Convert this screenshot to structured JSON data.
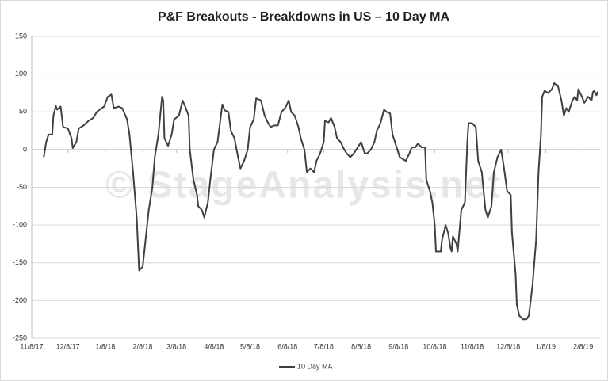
{
  "chart_data": {
    "type": "line",
    "title": "P&F Breakouts - Breakdowns in US – 10 Day MA",
    "watermark": "© StageAnalysis.net",
    "x": [
      "2017-11-18",
      "2017-11-20",
      "2017-11-22",
      "2017-11-25",
      "2017-11-26",
      "2017-11-28",
      "2017-11-29",
      "2017-12-02",
      "2017-12-04",
      "2017-12-08",
      "2017-12-11",
      "2017-12-12",
      "2017-12-15",
      "2017-12-17",
      "2017-12-21",
      "2017-12-25",
      "2017-12-29",
      "2018-01-01",
      "2018-01-05",
      "2018-01-07",
      "2018-01-10",
      "2018-01-13",
      "2018-01-15",
      "2018-01-19",
      "2018-01-22",
      "2018-01-26",
      "2018-01-28",
      "2018-01-31",
      "2018-02-03",
      "2018-02-05",
      "2018-02-08",
      "2018-02-11",
      "2018-02-13",
      "2018-02-16",
      "2018-02-18",
      "2018-02-21",
      "2018-02-24",
      "2018-02-25",
      "2018-02-26",
      "2018-03-01",
      "2018-03-04",
      "2018-03-06",
      "2018-03-10",
      "2018-03-13",
      "2018-03-15",
      "2018-03-18",
      "2018-03-19",
      "2018-03-22",
      "2018-03-25",
      "2018-03-26",
      "2018-03-29",
      "2018-03-31",
      "2018-04-03",
      "2018-04-05",
      "2018-04-08",
      "2018-04-11",
      "2018-04-15",
      "2018-04-17",
      "2018-04-20",
      "2018-04-22",
      "2018-04-25",
      "2018-04-28",
      "2018-04-30",
      "2018-05-03",
      "2018-05-06",
      "2018-05-08",
      "2018-05-11",
      "2018-05-13",
      "2018-05-17",
      "2018-05-20",
      "2018-05-23",
      "2018-05-25",
      "2018-05-28",
      "2018-05-31",
      "2018-06-03",
      "2018-06-06",
      "2018-06-09",
      "2018-06-11",
      "2018-06-14",
      "2018-06-17",
      "2018-06-19",
      "2018-06-22",
      "2018-06-24",
      "2018-06-27",
      "2018-06-30",
      "2018-07-02",
      "2018-07-05",
      "2018-07-08",
      "2018-07-09",
      "2018-07-12",
      "2018-07-14",
      "2018-07-17",
      "2018-07-19",
      "2018-07-22",
      "2018-07-25",
      "2018-07-27",
      "2018-07-30",
      "2018-08-02",
      "2018-08-04",
      "2018-08-08",
      "2018-08-11",
      "2018-08-13",
      "2018-08-16",
      "2018-08-19",
      "2018-08-21",
      "2018-08-24",
      "2018-08-27",
      "2018-08-29",
      "2018-09-01",
      "2018-09-03",
      "2018-09-06",
      "2018-09-09",
      "2018-09-11",
      "2018-09-14",
      "2018-09-17",
      "2018-09-19",
      "2018-09-22",
      "2018-09-24",
      "2018-09-27",
      "2018-09-30",
      "2018-10-01",
      "2018-10-04",
      "2018-10-06",
      "2018-10-08",
      "2018-10-09",
      "2018-10-13",
      "2018-10-14",
      "2018-10-17",
      "2018-10-19",
      "2018-10-21",
      "2018-10-22",
      "2018-10-23",
      "2018-10-26",
      "2018-10-27",
      "2018-10-30",
      "2018-11-02",
      "2018-11-04",
      "2018-11-05",
      "2018-11-08",
      "2018-11-11",
      "2018-11-13",
      "2018-11-16",
      "2018-11-19",
      "2018-11-21",
      "2018-11-24",
      "2018-11-26",
      "2018-11-29",
      "2018-12-02",
      "2018-12-04",
      "2018-12-07",
      "2018-12-10",
      "2018-12-11",
      "2018-12-14",
      "2018-12-15",
      "2018-12-17",
      "2018-12-20",
      "2018-12-23",
      "2018-12-25",
      "2018-12-28",
      "2018-12-31",
      "2019-01-02",
      "2019-01-04",
      "2019-01-05",
      "2019-01-07",
      "2019-01-10",
      "2019-01-13",
      "2019-01-15",
      "2019-01-18",
      "2019-01-21",
      "2019-01-23",
      "2019-01-25",
      "2019-01-27",
      "2019-01-30",
      "2019-02-01",
      "2019-02-03",
      "2019-02-04",
      "2019-02-07",
      "2019-02-09",
      "2019-02-12",
      "2019-02-15",
      "2019-02-16",
      "2019-02-17",
      "2019-02-19",
      "2019-02-20"
    ],
    "series": [
      {
        "name": "10 Day MA",
        "color": "#404040",
        "values": [
          -10,
          10,
          20,
          20,
          45,
          58,
          53,
          57,
          30,
          28,
          15,
          2,
          10,
          28,
          32,
          38,
          42,
          50,
          55,
          57,
          70,
          73,
          55,
          57,
          55,
          40,
          20,
          -30,
          -90,
          -160,
          -155,
          -110,
          -80,
          -50,
          -10,
          20,
          70,
          65,
          15,
          5,
          20,
          40,
          45,
          65,
          58,
          45,
          0,
          -40,
          -60,
          -75,
          -80,
          -90,
          -70,
          -40,
          0,
          10,
          60,
          52,
          50,
          25,
          15,
          -10,
          -25,
          -15,
          0,
          30,
          40,
          68,
          65,
          45,
          35,
          30,
          32,
          32,
          50,
          55,
          65,
          50,
          45,
          30,
          15,
          0,
          -30,
          -25,
          -30,
          -15,
          -5,
          10,
          38,
          36,
          42,
          30,
          15,
          10,
          0,
          -5,
          -10,
          -5,
          0,
          10,
          -5,
          -5,
          0,
          10,
          25,
          35,
          53,
          50,
          48,
          20,
          5,
          -10,
          -12,
          -15,
          -5,
          3,
          3,
          8,
          3,
          3,
          -40,
          -55,
          -70,
          -100,
          -135,
          -135,
          -120,
          -100,
          -110,
          -130,
          -135,
          -115,
          -125,
          -135,
          -80,
          -70,
          10,
          35,
          35,
          30,
          -15,
          -30,
          -80,
          -90,
          -75,
          -30,
          -10,
          0,
          -20,
          -55,
          -60,
          -110,
          -165,
          -205,
          -220,
          -225,
          -225,
          -220,
          -180,
          -120,
          -30,
          20,
          70,
          78,
          75,
          80,
          88,
          85,
          65,
          45,
          55,
          50,
          65,
          70,
          65,
          80,
          70,
          62,
          70,
          65,
          76,
          78,
          72,
          77
        ]
      }
    ],
    "xlim": [
      "2017-11-08",
      "2019-02-22"
    ],
    "xticks": [
      {
        "value": "2017-11-08",
        "label": "11/8/17"
      },
      {
        "value": "2017-12-08",
        "label": "12/8/17"
      },
      {
        "value": "2018-01-08",
        "label": "1/8/18"
      },
      {
        "value": "2018-02-08",
        "label": "2/8/18"
      },
      {
        "value": "2018-03-08",
        "label": "3/8/18"
      },
      {
        "value": "2018-04-08",
        "label": "4/8/18"
      },
      {
        "value": "2018-05-08",
        "label": "5/8/18"
      },
      {
        "value": "2018-06-08",
        "label": "6/8/18"
      },
      {
        "value": "2018-07-08",
        "label": "7/8/18"
      },
      {
        "value": "2018-08-08",
        "label": "8/8/18"
      },
      {
        "value": "2018-09-08",
        "label": "9/8/18"
      },
      {
        "value": "2018-10-08",
        "label": "10/8/18"
      },
      {
        "value": "2018-11-08",
        "label": "11/8/18"
      },
      {
        "value": "2018-12-08",
        "label": "12/8/18"
      },
      {
        "value": "2019-01-08",
        "label": "1/8/19"
      },
      {
        "value": "2019-02-08",
        "label": "2/8/19"
      }
    ],
    "ylim": [
      -250,
      150
    ],
    "yticks": [
      -250,
      -200,
      -150,
      -100,
      -50,
      0,
      50,
      100,
      150
    ],
    "grid": true,
    "legend": "bottom"
  }
}
